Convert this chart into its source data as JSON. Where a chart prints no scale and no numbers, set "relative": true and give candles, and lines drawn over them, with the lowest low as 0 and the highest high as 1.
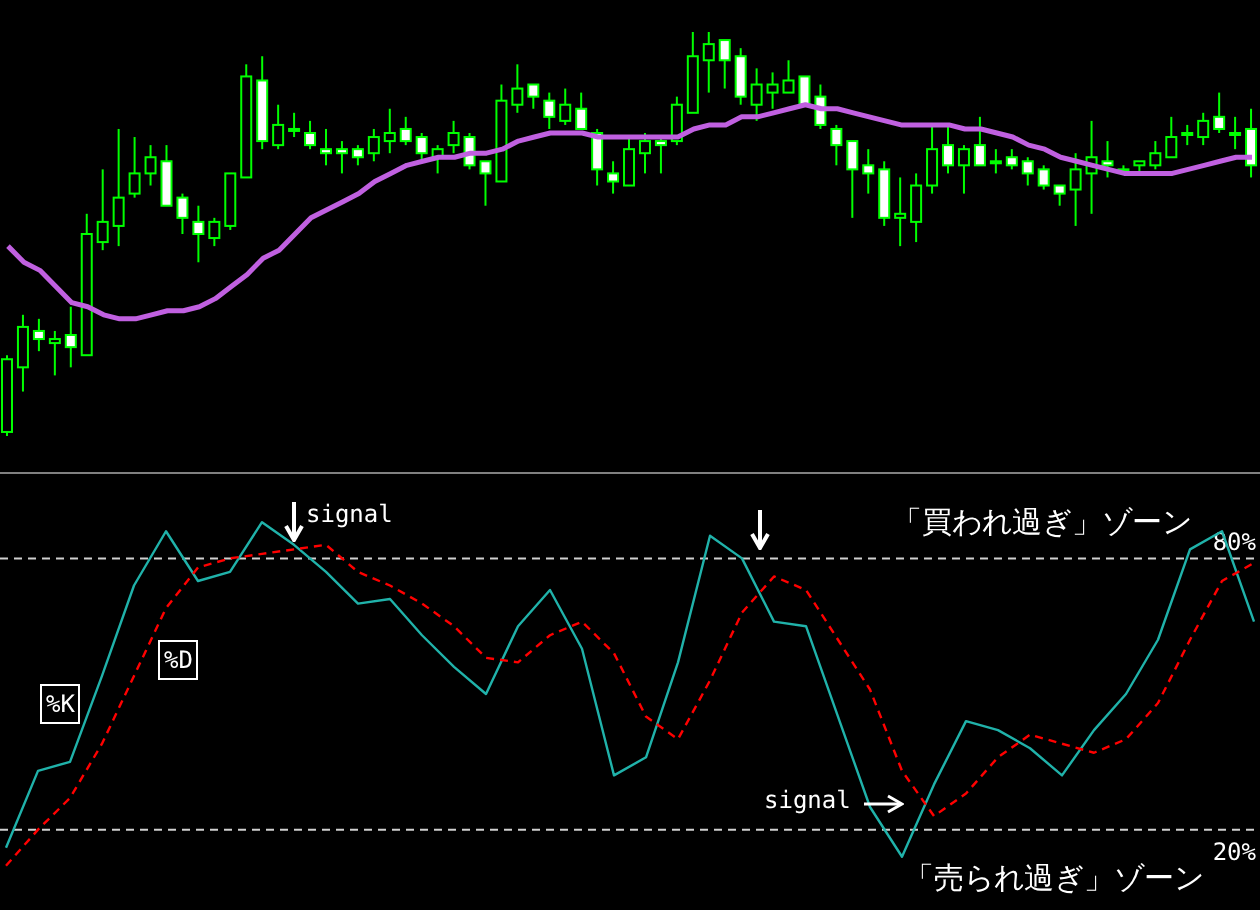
{
  "chart_data": [
    {
      "type": "candlestick",
      "relative": true,
      "color": "#00ff00",
      "categories": [
        null,
        null,
        null,
        null,
        null,
        null,
        null,
        null,
        null,
        null,
        null,
        null,
        null,
        null,
        null,
        null,
        null,
        null,
        null,
        null,
        null,
        null,
        null,
        null,
        null,
        null,
        null,
        null,
        null,
        null,
        null,
        null,
        null,
        null,
        null,
        null,
        null,
        null,
        null,
        null,
        null,
        null,
        null,
        null,
        null,
        null,
        null,
        null,
        null,
        null,
        null,
        null,
        null,
        null,
        null,
        null,
        null,
        null,
        null,
        null,
        null,
        null,
        null,
        null,
        null,
        null,
        null,
        null,
        null,
        null,
        null,
        null,
        null,
        null,
        null,
        null,
        null,
        null,
        null
      ],
      "ohlc": [
        [
          0.01,
          0.2,
          0,
          0.19
        ],
        [
          0.17,
          0.3,
          0.11,
          0.27
        ],
        [
          0.26,
          0.29,
          0.21,
          0.24
        ],
        [
          0.23,
          0.26,
          0.15,
          0.24
        ],
        [
          0.25,
          0.32,
          0.17,
          0.22
        ],
        [
          0.2,
          0.55,
          0.2,
          0.5
        ],
        [
          0.48,
          0.66,
          0.46,
          0.53
        ],
        [
          0.52,
          0.76,
          0.47,
          0.59
        ],
        [
          0.6,
          0.74,
          0.59,
          0.65
        ],
        [
          0.65,
          0.72,
          0.62,
          0.69
        ],
        [
          0.68,
          0.72,
          0.57,
          0.57
        ],
        [
          0.59,
          0.6,
          0.5,
          0.54
        ],
        [
          0.53,
          0.57,
          0.43,
          0.5
        ],
        [
          0.49,
          0.54,
          0.47,
          0.53
        ],
        [
          0.52,
          0.65,
          0.51,
          0.65
        ],
        [
          0.64,
          0.92,
          0.64,
          0.89
        ],
        [
          0.88,
          0.94,
          0.71,
          0.73
        ],
        [
          0.72,
          0.82,
          0.71,
          0.77
        ],
        [
          0.76,
          0.8,
          0.74,
          0.76
        ],
        [
          0.75,
          0.78,
          0.71,
          0.72
        ],
        [
          0.71,
          0.76,
          0.67,
          0.7
        ],
        [
          0.71,
          0.73,
          0.65,
          0.7
        ],
        [
          0.71,
          0.72,
          0.67,
          0.69
        ],
        [
          0.7,
          0.76,
          0.68,
          0.74
        ],
        [
          0.73,
          0.81,
          0.7,
          0.75
        ],
        [
          0.76,
          0.79,
          0.72,
          0.73
        ],
        [
          0.74,
          0.75,
          0.68,
          0.7
        ],
        [
          0.69,
          0.72,
          0.65,
          0.71
        ],
        [
          0.72,
          0.78,
          0.7,
          0.75
        ],
        [
          0.74,
          0.75,
          0.66,
          0.67
        ],
        [
          0.68,
          0.68,
          0.57,
          0.65
        ],
        [
          0.63,
          0.87,
          0.63,
          0.83
        ],
        [
          0.82,
          0.92,
          0.8,
          0.86
        ],
        [
          0.87,
          0.87,
          0.81,
          0.84
        ],
        [
          0.83,
          0.85,
          0.76,
          0.79
        ],
        [
          0.78,
          0.86,
          0.77,
          0.82
        ],
        [
          0.81,
          0.85,
          0.76,
          0.76
        ],
        [
          0.75,
          0.76,
          0.62,
          0.66
        ],
        [
          0.65,
          0.68,
          0.6,
          0.63
        ],
        [
          0.62,
          0.74,
          0.62,
          0.71
        ],
        [
          0.7,
          0.75,
          0.65,
          0.73
        ],
        [
          0.73,
          0.74,
          0.65,
          0.72
        ],
        [
          0.73,
          0.84,
          0.72,
          0.82
        ],
        [
          0.8,
          1.0,
          0.8,
          0.94
        ],
        [
          0.93,
          1.0,
          0.85,
          0.97
        ],
        [
          0.98,
          0.98,
          0.86,
          0.93
        ],
        [
          0.94,
          0.96,
          0.82,
          0.84
        ],
        [
          0.82,
          0.91,
          0.78,
          0.87
        ],
        [
          0.85,
          0.9,
          0.81,
          0.87
        ],
        [
          0.85,
          0.93,
          0.85,
          0.88
        ],
        [
          0.89,
          0.89,
          0.82,
          0.82
        ],
        [
          0.84,
          0.87,
          0.76,
          0.77
        ],
        [
          0.76,
          0.77,
          0.67,
          0.72
        ],
        [
          0.73,
          0.73,
          0.54,
          0.66
        ],
        [
          0.67,
          0.71,
          0.6,
          0.65
        ],
        [
          0.66,
          0.68,
          0.52,
          0.54
        ],
        [
          0.54,
          0.64,
          0.47,
          0.55
        ],
        [
          0.53,
          0.65,
          0.48,
          0.62
        ],
        [
          0.62,
          0.77,
          0.6,
          0.71
        ],
        [
          0.72,
          0.77,
          0.65,
          0.67
        ],
        [
          0.67,
          0.72,
          0.6,
          0.71
        ],
        [
          0.72,
          0.79,
          0.67,
          0.67
        ],
        [
          0.68,
          0.71,
          0.65,
          0.68
        ],
        [
          0.69,
          0.71,
          0.66,
          0.67
        ],
        [
          0.68,
          0.69,
          0.62,
          0.65
        ],
        [
          0.66,
          0.67,
          0.61,
          0.62
        ],
        [
          0.62,
          0.62,
          0.57,
          0.6
        ],
        [
          0.61,
          0.7,
          0.52,
          0.66
        ],
        [
          0.65,
          0.78,
          0.55,
          0.69
        ],
        [
          0.68,
          0.73,
          0.64,
          0.67
        ],
        [
          0.66,
          0.67,
          0.66,
          0.66
        ],
        [
          0.67,
          0.68,
          0.65,
          0.68
        ],
        [
          0.67,
          0.73,
          0.66,
          0.7
        ],
        [
          0.69,
          0.79,
          0.69,
          0.74
        ],
        [
          0.75,
          0.77,
          0.72,
          0.75
        ],
        [
          0.74,
          0.8,
          0.72,
          0.78
        ],
        [
          0.79,
          0.85,
          0.75,
          0.76
        ],
        [
          0.75,
          0.79,
          0.71,
          0.75
        ],
        [
          0.76,
          0.81,
          0.64,
          0.67
        ]
      ],
      "series": [
        {
          "type": "line",
          "color": "#c060e0",
          "values": [
            0.47,
            0.43,
            0.41,
            0.37,
            0.33,
            0.32,
            0.3,
            0.29,
            0.29,
            0.3,
            0.31,
            0.31,
            0.32,
            0.34,
            0.37,
            0.4,
            0.44,
            0.46,
            0.5,
            0.54,
            0.56,
            0.58,
            0.6,
            0.63,
            0.65,
            0.67,
            0.68,
            0.69,
            0.69,
            0.7,
            0.7,
            0.71,
            0.73,
            0.74,
            0.75,
            0.75,
            0.75,
            0.74,
            0.74,
            0.74,
            0.74,
            0.74,
            0.74,
            0.76,
            0.77,
            0.77,
            0.79,
            0.79,
            0.8,
            0.81,
            0.82,
            0.81,
            0.81,
            0.8,
            0.79,
            0.78,
            0.77,
            0.77,
            0.77,
            0.77,
            0.76,
            0.76,
            0.75,
            0.74,
            0.72,
            0.71,
            0.69,
            0.68,
            0.67,
            0.66,
            0.65,
            0.65,
            0.65,
            0.65,
            0.66,
            0.67,
            0.68,
            0.69,
            0.69
          ]
        }
      ]
    },
    {
      "type": "line",
      "tick_labels": false,
      "ylim": [
        2,
        98
      ],
      "categories": [
        null,
        null,
        null,
        null,
        null,
        null,
        null,
        null,
        null,
        null,
        null,
        null,
        null,
        null,
        null,
        null,
        null,
        null,
        null,
        null,
        null,
        null,
        null,
        null,
        null,
        null,
        null,
        null,
        null,
        null,
        null,
        null,
        null,
        null,
        null,
        null,
        null,
        null,
        null,
        null
      ],
      "series": [
        {
          "name": "%K",
          "color": "#20b2aa",
          "line_style": "solid",
          "values": [
            16,
            33,
            35,
            54,
            74,
            86,
            75,
            77,
            88,
            83,
            77,
            70,
            71,
            63,
            56,
            50,
            65,
            73,
            60,
            32,
            36,
            57,
            85,
            80,
            66,
            65,
            45,
            25,
            14,
            30,
            44,
            42,
            38,
            32,
            42,
            50,
            62,
            82,
            86,
            66
          ]
        },
        {
          "name": "%D",
          "color": "#ff0000",
          "line_style": "dashed",
          "values": [
            12,
            20,
            27,
            39,
            54,
            69,
            78,
            80,
            81,
            82,
            83,
            77,
            74,
            70,
            65,
            58,
            57,
            63,
            66,
            59,
            45,
            40,
            53,
            68,
            76,
            73,
            62,
            51,
            33,
            23,
            28,
            36,
            41,
            39,
            37,
            40,
            48,
            62,
            75,
            79
          ]
        }
      ],
      "ref_lines": [
        {
          "axis": "y",
          "value": 80,
          "label": "80%",
          "color": "#d0d0d0",
          "line_style": "dashed"
        },
        {
          "axis": "y",
          "value": 20,
          "label": "20%",
          "color": "#d0d0d0",
          "line_style": "dashed"
        }
      ],
      "annotations": [
        "signal",
        "「買われ過ぎ」ゾーン",
        "signal",
        "「売られ過ぎ」ゾーン"
      ]
    }
  ]
}
